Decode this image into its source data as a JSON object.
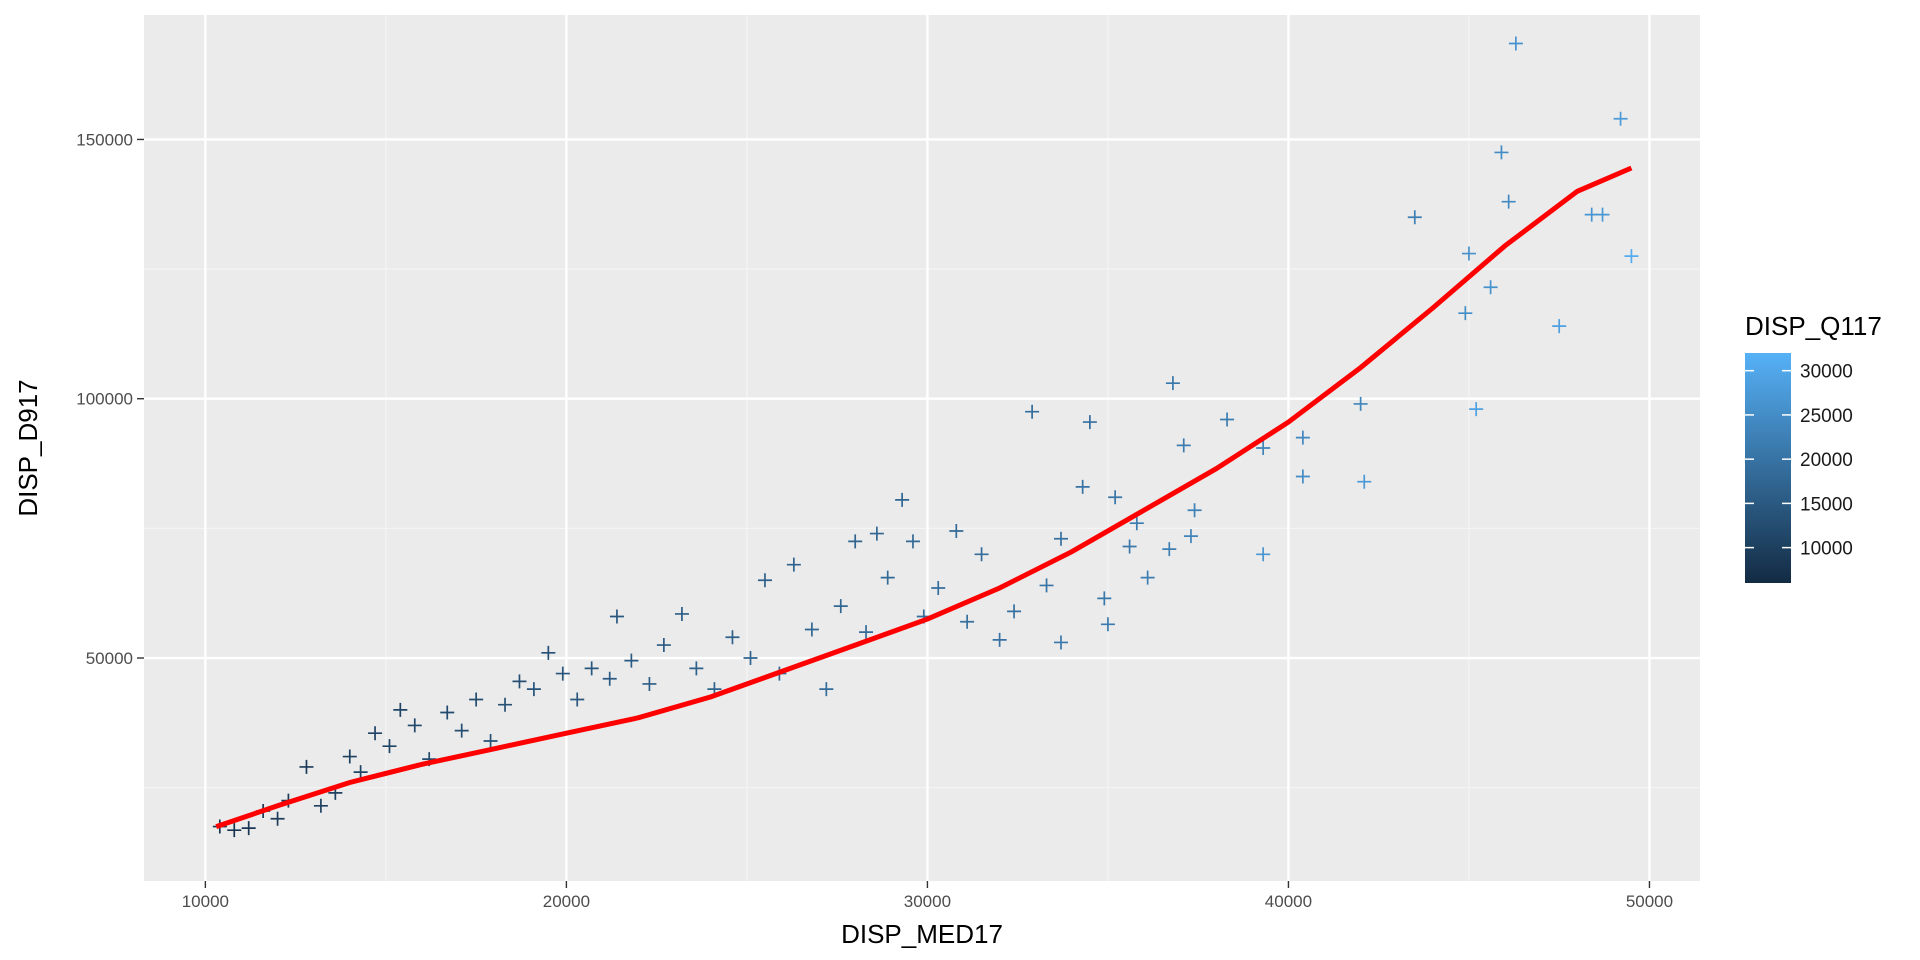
{
  "chart_data": {
    "type": "scatter",
    "title": "",
    "xlabel": "DISP_MED17",
    "ylabel": "DISP_D917",
    "xlim": [
      8300,
      51400
    ],
    "ylim": [
      7000,
      174000
    ],
    "x_ticks": [
      10000,
      20000,
      30000,
      40000,
      50000
    ],
    "x_tick_labels": [
      "10000",
      "20000",
      "30000",
      "40000",
      "50000"
    ],
    "y_ticks": [
      50000,
      100000,
      150000
    ],
    "y_tick_labels": [
      "50000",
      "100000",
      "150000"
    ],
    "grid": true,
    "marker": "plus",
    "color_scale": {
      "title": "DISP_Q117",
      "min": 6000,
      "max": 32000,
      "ticks": [
        10000,
        15000,
        20000,
        25000,
        30000
      ],
      "tick_labels": [
        "10000",
        "15000",
        "20000",
        "25000",
        "30000"
      ],
      "low_color": "#132b43",
      "high_color": "#56b1f7"
    },
    "legend_position": "right",
    "points": [
      [
        10400,
        17500,
        8200
      ],
      [
        10800,
        16800,
        8000
      ],
      [
        11200,
        17200,
        8400
      ],
      [
        11600,
        20500,
        8900
      ],
      [
        12000,
        19000,
        9300
      ],
      [
        12300,
        22500,
        9500
      ],
      [
        12800,
        29000,
        9000
      ],
      [
        13200,
        21500,
        10200
      ],
      [
        13600,
        24000,
        10400
      ],
      [
        14000,
        31000,
        10100
      ],
      [
        14300,
        28000,
        10800
      ],
      [
        14700,
        35500,
        10500
      ],
      [
        15100,
        33000,
        11200
      ],
      [
        15400,
        40000,
        10900
      ],
      [
        15800,
        37000,
        11500
      ],
      [
        16200,
        30500,
        12300
      ],
      [
        16700,
        39500,
        12000
      ],
      [
        17100,
        36000,
        12800
      ],
      [
        17500,
        42000,
        12500
      ],
      [
        17900,
        34000,
        13500
      ],
      [
        18300,
        41000,
        13200
      ],
      [
        18700,
        45500,
        13000
      ],
      [
        19100,
        44000,
        13800
      ],
      [
        19500,
        51000,
        13100
      ],
      [
        19900,
        47000,
        14200
      ],
      [
        20300,
        42000,
        14800
      ],
      [
        20700,
        48000,
        14500
      ],
      [
        21200,
        46000,
        15200
      ],
      [
        21400,
        58000,
        14600
      ],
      [
        21800,
        49500,
        15300
      ],
      [
        22300,
        45000,
        15900
      ],
      [
        22700,
        52500,
        15100
      ],
      [
        23200,
        58500,
        15600
      ],
      [
        23600,
        48000,
        16400
      ],
      [
        24100,
        44000,
        16900
      ],
      [
        24600,
        54000,
        16200
      ],
      [
        25100,
        50000,
        17100
      ],
      [
        25500,
        65000,
        16300
      ],
      [
        25900,
        47000,
        17600
      ],
      [
        26300,
        68000,
        16700
      ],
      [
        26800,
        55500,
        17700
      ],
      [
        27200,
        44000,
        18400
      ],
      [
        27600,
        60000,
        17600
      ],
      [
        28000,
        72500,
        17100
      ],
      [
        28300,
        55000,
        18500
      ],
      [
        28600,
        74000,
        17500
      ],
      [
        28900,
        65500,
        18200
      ],
      [
        29300,
        80500,
        17300
      ],
      [
        29600,
        72500,
        18000
      ],
      [
        29900,
        58000,
        18800
      ],
      [
        30300,
        63500,
        19000
      ],
      [
        30800,
        74500,
        18300
      ],
      [
        31100,
        57000,
        19300
      ],
      [
        31500,
        70000,
        18700
      ],
      [
        32000,
        53500,
        19800
      ],
      [
        32400,
        59000,
        19400
      ],
      [
        32900,
        97500,
        18600
      ],
      [
        33300,
        64000,
        20100
      ],
      [
        33700,
        73000,
        19600
      ],
      [
        33700,
        53000,
        20700
      ],
      [
        34300,
        83000,
        19900
      ],
      [
        34500,
        95500,
        19100
      ],
      [
        34900,
        61500,
        20900
      ],
      [
        35000,
        56500,
        21400
      ],
      [
        35200,
        81000,
        20600
      ],
      [
        35600,
        71500,
        21000
      ],
      [
        35800,
        76000,
        21600
      ],
      [
        36100,
        65500,
        22100
      ],
      [
        36700,
        71000,
        22300
      ],
      [
        36800,
        103000,
        20800
      ],
      [
        37100,
        91000,
        21800
      ],
      [
        37300,
        73500,
        23200
      ],
      [
        37400,
        78500,
        22600
      ],
      [
        38300,
        96000,
        22000
      ],
      [
        39300,
        90500,
        23000
      ],
      [
        39300,
        70000,
        26500
      ],
      [
        40400,
        85000,
        24800
      ],
      [
        40400,
        92500,
        24100
      ],
      [
        42000,
        99000,
        23600
      ],
      [
        42100,
        84000,
        27200
      ],
      [
        43500,
        135000,
        22500
      ],
      [
        44900,
        116500,
        25200
      ],
      [
        45000,
        128000,
        25800
      ],
      [
        45200,
        98000,
        28800
      ],
      [
        45600,
        121500,
        25900
      ],
      [
        45900,
        147500,
        24700
      ],
      [
        46100,
        138000,
        24200
      ],
      [
        46300,
        168500,
        26200
      ],
      [
        47500,
        114000,
        28500
      ],
      [
        48400,
        135500,
        26600
      ],
      [
        48700,
        135500,
        27100
      ],
      [
        49200,
        154000,
        27600
      ],
      [
        49500,
        127500,
        31000
      ]
    ],
    "fit_line": {
      "color": "#ff0000",
      "x": [
        10300,
        12000,
        14000,
        16000,
        18000,
        20000,
        22000,
        24000,
        26000,
        28000,
        30000,
        32000,
        34000,
        36000,
        38000,
        40000,
        42000,
        44000,
        46000,
        48000,
        49500
      ],
      "y": [
        17500,
        21500,
        26000,
        29500,
        32500,
        35500,
        38500,
        42500,
        47500,
        52500,
        57500,
        63500,
        70500,
        78500,
        86500,
        95500,
        106000,
        117500,
        129500,
        140000,
        144500
      ]
    }
  }
}
